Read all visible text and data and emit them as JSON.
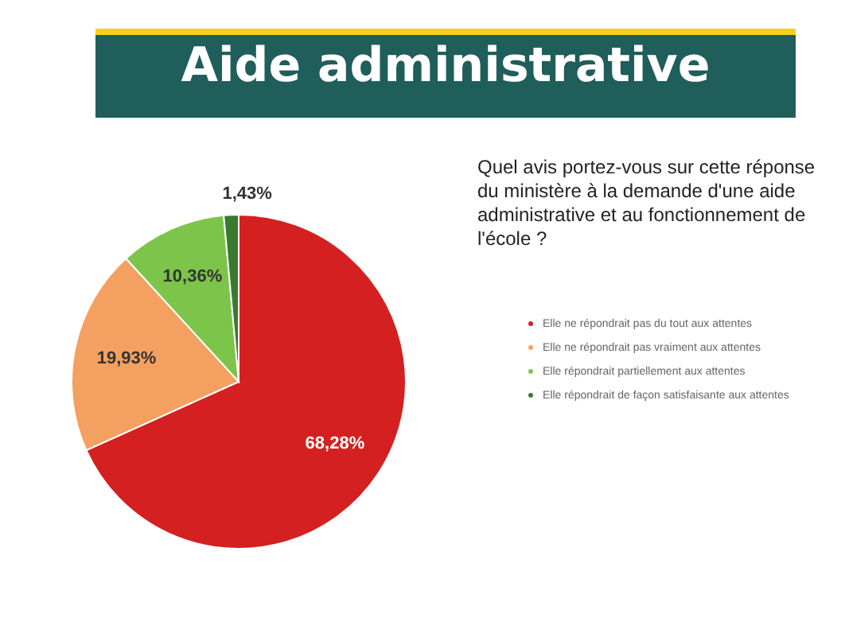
{
  "chart_data": {
    "type": "pie",
    "title": "Aide administrative",
    "subtitle": "Quel avis portez-vous sur cette réponse du ministère à la demande d'une aide administrative et au fonctionnement de l'école ?",
    "categories": [
      "Elle ne répondrait pas du tout aux attentes",
      "Elle ne répondrait pas vraiment aux attentes",
      "Elle répondrait partiellement aux attentes",
      "Elle répondrait de façon satisfaisante aux attentes"
    ],
    "values": [
      68.28,
      19.93,
      10.36,
      1.43
    ],
    "colors": [
      "#d42020",
      "#f4a060",
      "#7cc44a",
      "#3a7a30"
    ],
    "value_labels": [
      "68,28%",
      "19,93%",
      "10,36%",
      "1,43%"
    ],
    "legend": "right"
  }
}
